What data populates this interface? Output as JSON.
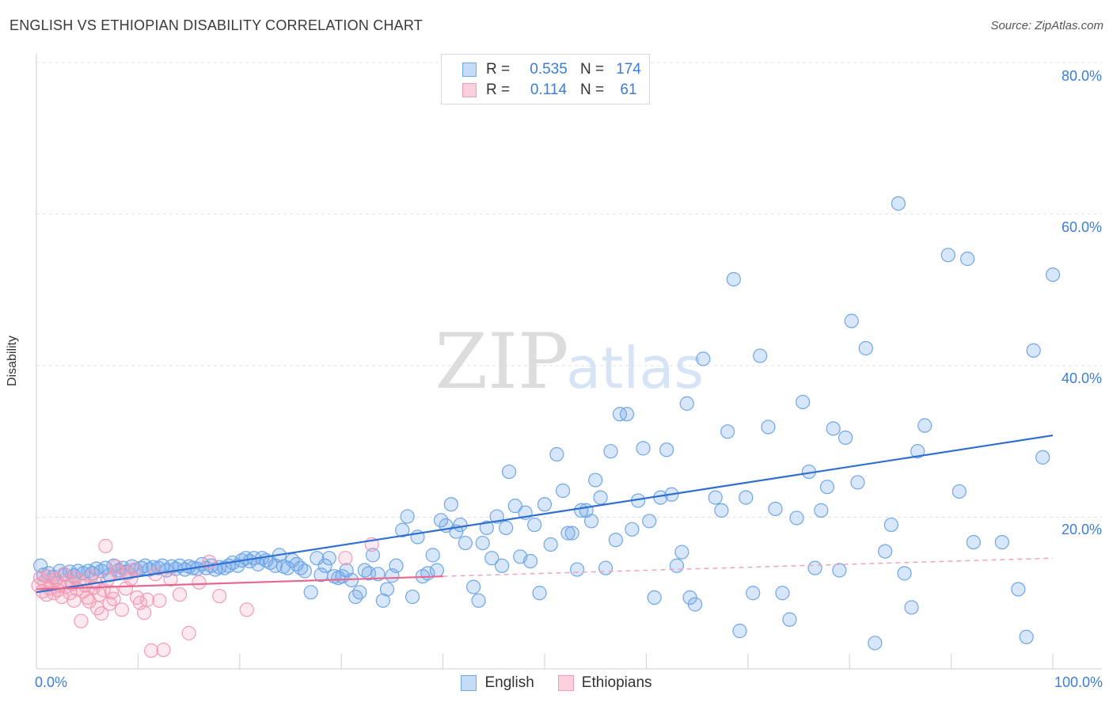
{
  "title": "ENGLISH VS ETHIOPIAN DISABILITY CORRELATION CHART",
  "source": "Source: ZipAtlas.com",
  "watermark": {
    "zip": "ZIP",
    "atlas": "atlas"
  },
  "legend_top": {
    "rows": [
      {
        "r_label": "R =",
        "r_value": "0.535",
        "n_label": "N =",
        "n_value": "174",
        "color": "#6fa6e8"
      },
      {
        "r_label": "R =",
        "r_value": "0.114",
        "n_label": "N =",
        "n_value": "61",
        "color": "#f29bb5"
      }
    ]
  },
  "legend_bottom": [
    {
      "label": "English",
      "color": "#6fa6e8"
    },
    {
      "label": "Ethiopians",
      "color": "#f29bb5"
    }
  ],
  "chart_data": {
    "type": "scatter",
    "title": "ENGLISH VS ETHIOPIAN DISABILITY CORRELATION CHART",
    "xlabel": "",
    "ylabel": "Disability",
    "xlim": [
      0,
      100
    ],
    "ylim": [
      0,
      80
    ],
    "x_tick_labels": [
      "0.0%",
      "100.0%"
    ],
    "y_ticks": [
      20,
      40,
      60,
      80
    ],
    "y_tick_labels": [
      "20.0%",
      "40.0%",
      "60.0%",
      "80.0%"
    ],
    "grid": true,
    "legend_position": "bottom",
    "series": [
      {
        "name": "English",
        "color": "#6fa6e8",
        "trend": {
          "x": [
            0,
            100
          ],
          "y": [
            10.1,
            30.8
          ]
        },
        "points": [
          [
            0.4,
            13.6
          ],
          [
            0.7,
            12.4
          ],
          [
            1.2,
            12.6
          ],
          [
            1.7,
            12.1
          ],
          [
            2.3,
            12.9
          ],
          [
            2.8,
            12.4
          ],
          [
            3.3,
            12.8
          ],
          [
            3.7,
            12.3
          ],
          [
            4.1,
            12.9
          ],
          [
            4.6,
            12.6
          ],
          [
            5.1,
            12.9
          ],
          [
            5.5,
            12.6
          ],
          [
            5.9,
            13.2
          ],
          [
            6.4,
            12.9
          ],
          [
            6.8,
            13.3
          ],
          [
            7.2,
            12.4
          ],
          [
            7.6,
            13.6
          ],
          [
            8.1,
            13.0
          ],
          [
            8.5,
            13.3
          ],
          [
            8.9,
            12.8
          ],
          [
            9.4,
            13.5
          ],
          [
            9.8,
            13.0
          ],
          [
            10.3,
            13.3
          ],
          [
            10.7,
            13.6
          ],
          [
            11.1,
            13.1
          ],
          [
            11.5,
            13.4
          ],
          [
            12.0,
            13.3
          ],
          [
            12.4,
            13.6
          ],
          [
            12.8,
            13.0
          ],
          [
            13.3,
            13.5
          ],
          [
            13.7,
            13.2
          ],
          [
            14.1,
            13.6
          ],
          [
            14.6,
            13.1
          ],
          [
            15.0,
            13.5
          ],
          [
            15.4,
            13.3
          ],
          [
            15.8,
            13.2
          ],
          [
            16.3,
            13.8
          ],
          [
            16.7,
            13.3
          ],
          [
            17.2,
            13.6
          ],
          [
            17.6,
            13.1
          ],
          [
            18.0,
            13.4
          ],
          [
            18.5,
            13.3
          ],
          [
            18.9,
            13.6
          ],
          [
            19.3,
            14.0
          ],
          [
            19.8,
            13.6
          ],
          [
            20.2,
            14.3
          ],
          [
            20.6,
            14.6
          ],
          [
            21.0,
            14.2
          ],
          [
            21.4,
            14.6
          ],
          [
            21.8,
            13.8
          ],
          [
            22.2,
            14.6
          ],
          [
            22.6,
            14.3
          ],
          [
            23.0,
            14.0
          ],
          [
            23.5,
            13.6
          ],
          [
            23.9,
            15.0
          ],
          [
            24.3,
            13.5
          ],
          [
            24.7,
            13.3
          ],
          [
            25.2,
            14.3
          ],
          [
            25.6,
            13.8
          ],
          [
            26.0,
            13.3
          ],
          [
            26.4,
            12.9
          ],
          [
            27.0,
            10.1
          ],
          [
            27.6,
            14.6
          ],
          [
            28.0,
            12.4
          ],
          [
            28.4,
            13.6
          ],
          [
            28.8,
            14.6
          ],
          [
            29.3,
            12.2
          ],
          [
            29.7,
            12.0
          ],
          [
            30.1,
            12.2
          ],
          [
            30.5,
            13.0
          ],
          [
            31.0,
            11.7
          ],
          [
            31.4,
            9.5
          ],
          [
            31.8,
            10.1
          ],
          [
            32.3,
            13.0
          ],
          [
            32.7,
            12.6
          ],
          [
            33.1,
            15.0
          ],
          [
            33.6,
            12.5
          ],
          [
            34.1,
            9.0
          ],
          [
            34.5,
            10.5
          ],
          [
            35.0,
            12.3
          ],
          [
            35.4,
            13.6
          ],
          [
            36.0,
            18.3
          ],
          [
            36.5,
            20.1
          ],
          [
            37.0,
            9.5
          ],
          [
            37.5,
            17.4
          ],
          [
            38.0,
            12.2
          ],
          [
            38.5,
            12.6
          ],
          [
            39.0,
            15.0
          ],
          [
            39.4,
            13.0
          ],
          [
            39.8,
            19.6
          ],
          [
            40.3,
            18.9
          ],
          [
            40.8,
            21.7
          ],
          [
            41.3,
            18.1
          ],
          [
            41.7,
            19.0
          ],
          [
            42.2,
            16.6
          ],
          [
            43.0,
            10.8
          ],
          [
            43.5,
            9.0
          ],
          [
            43.9,
            16.6
          ],
          [
            44.3,
            18.6
          ],
          [
            44.8,
            14.6
          ],
          [
            45.3,
            20.1
          ],
          [
            45.8,
            13.6
          ],
          [
            46.2,
            18.6
          ],
          [
            46.5,
            26.0
          ],
          [
            47.1,
            21.5
          ],
          [
            47.6,
            14.8
          ],
          [
            48.1,
            20.6
          ],
          [
            48.6,
            14.2
          ],
          [
            49.0,
            19.0
          ],
          [
            49.5,
            10.0
          ],
          [
            50.0,
            21.7
          ],
          [
            50.6,
            16.4
          ],
          [
            51.2,
            28.3
          ],
          [
            51.8,
            23.5
          ],
          [
            52.3,
            17.9
          ],
          [
            52.7,
            17.9
          ],
          [
            53.2,
            13.1
          ],
          [
            53.6,
            20.9
          ],
          [
            54.1,
            20.9
          ],
          [
            54.6,
            19.5
          ],
          [
            55.0,
            24.9
          ],
          [
            55.5,
            22.6
          ],
          [
            56.0,
            13.3
          ],
          [
            56.5,
            28.7
          ],
          [
            57.0,
            17.0
          ],
          [
            57.4,
            33.6
          ],
          [
            58.1,
            33.6
          ],
          [
            58.6,
            18.4
          ],
          [
            59.2,
            22.2
          ],
          [
            59.7,
            29.1
          ],
          [
            60.3,
            19.5
          ],
          [
            60.8,
            9.4
          ],
          [
            61.4,
            22.6
          ],
          [
            62.0,
            28.9
          ],
          [
            62.5,
            23.0
          ],
          [
            63.0,
            13.6
          ],
          [
            63.5,
            15.4
          ],
          [
            64.0,
            35.0
          ],
          [
            64.3,
            9.4
          ],
          [
            64.8,
            8.5
          ],
          [
            65.6,
            40.9
          ],
          [
            66.8,
            22.6
          ],
          [
            67.4,
            20.9
          ],
          [
            68.0,
            31.3
          ],
          [
            68.6,
            51.4
          ],
          [
            69.2,
            5.0
          ],
          [
            69.8,
            22.6
          ],
          [
            70.5,
            10.0
          ],
          [
            71.2,
            41.3
          ],
          [
            72.0,
            31.9
          ],
          [
            72.7,
            21.1
          ],
          [
            73.4,
            10.0
          ],
          [
            74.1,
            6.5
          ],
          [
            74.8,
            19.9
          ],
          [
            75.4,
            35.2
          ],
          [
            76.0,
            26.0
          ],
          [
            76.6,
            13.3
          ],
          [
            77.2,
            20.9
          ],
          [
            77.8,
            24.0
          ],
          [
            78.4,
            31.7
          ],
          [
            79.0,
            13.0
          ],
          [
            79.6,
            30.5
          ],
          [
            80.2,
            45.9
          ],
          [
            80.8,
            24.6
          ],
          [
            81.6,
            42.3
          ],
          [
            82.5,
            3.4
          ],
          [
            83.5,
            15.5
          ],
          [
            84.1,
            19.0
          ],
          [
            84.8,
            61.4
          ],
          [
            85.4,
            12.6
          ],
          [
            86.1,
            8.1
          ],
          [
            86.7,
            28.7
          ],
          [
            87.4,
            32.1
          ],
          [
            89.7,
            54.6
          ],
          [
            90.8,
            23.4
          ],
          [
            91.6,
            54.1
          ],
          [
            92.2,
            16.7
          ],
          [
            95.0,
            16.7
          ],
          [
            96.6,
            10.5
          ],
          [
            97.4,
            4.2
          ],
          [
            98.1,
            42.0
          ],
          [
            99.0,
            27.9
          ],
          [
            100.0,
            52.0
          ]
        ]
      },
      {
        "name": "Ethiopians",
        "color": "#f29bb5",
        "trend": {
          "x": [
            0,
            40
          ],
          "y": [
            10.5,
            12.2
          ]
        },
        "trend_dashed": {
          "x": [
            40,
            100
          ],
          "y": [
            12.2,
            14.6
          ]
        },
        "points": [
          [
            0.2,
            11.0
          ],
          [
            0.4,
            12.0
          ],
          [
            0.6,
            10.2
          ],
          [
            0.8,
            11.5
          ],
          [
            1.0,
            9.8
          ],
          [
            1.1,
            12.2
          ],
          [
            1.3,
            10.6
          ],
          [
            1.5,
            11.3
          ],
          [
            1.7,
            10.0
          ],
          [
            1.9,
            11.8
          ],
          [
            2.1,
            10.4
          ],
          [
            2.3,
            11.0
          ],
          [
            2.5,
            9.5
          ],
          [
            2.7,
            12.5
          ],
          [
            2.9,
            10.8
          ],
          [
            3.1,
            11.5
          ],
          [
            3.3,
            10.0
          ],
          [
            3.5,
            11.2
          ],
          [
            3.7,
            9.0
          ],
          [
            3.8,
            12.0
          ],
          [
            4.0,
            10.5
          ],
          [
            4.2,
            11.6
          ],
          [
            4.4,
            6.3
          ],
          [
            4.6,
            10.2
          ],
          [
            4.8,
            11.0
          ],
          [
            5.0,
            9.4
          ],
          [
            5.2,
            8.9
          ],
          [
            5.4,
            12.2
          ],
          [
            5.6,
            10.7
          ],
          [
            5.8,
            11.4
          ],
          [
            6.0,
            8.0
          ],
          [
            6.2,
            9.8
          ],
          [
            6.4,
            7.3
          ],
          [
            6.6,
            10.4
          ],
          [
            6.8,
            16.2
          ],
          [
            7.0,
            11.8
          ],
          [
            7.2,
            8.6
          ],
          [
            7.4,
            10.1
          ],
          [
            7.6,
            9.2
          ],
          [
            7.8,
            13.5
          ],
          [
            8.0,
            12.8
          ],
          [
            8.4,
            7.8
          ],
          [
            8.8,
            10.6
          ],
          [
            9.0,
            12.6
          ],
          [
            9.3,
            11.9
          ],
          [
            9.6,
            13.1
          ],
          [
            9.9,
            9.4
          ],
          [
            10.2,
            8.7
          ],
          [
            10.6,
            7.4
          ],
          [
            10.9,
            9.1
          ],
          [
            11.3,
            2.4
          ],
          [
            11.7,
            12.5
          ],
          [
            12.1,
            9.0
          ],
          [
            12.5,
            2.5
          ],
          [
            13.2,
            11.8
          ],
          [
            14.1,
            9.8
          ],
          [
            15.0,
            4.7
          ],
          [
            16.0,
            11.4
          ],
          [
            17.0,
            14.1
          ],
          [
            18.0,
            9.6
          ],
          [
            20.7,
            7.8
          ],
          [
            30.4,
            14.6
          ],
          [
            33.0,
            16.4
          ]
        ]
      }
    ]
  }
}
